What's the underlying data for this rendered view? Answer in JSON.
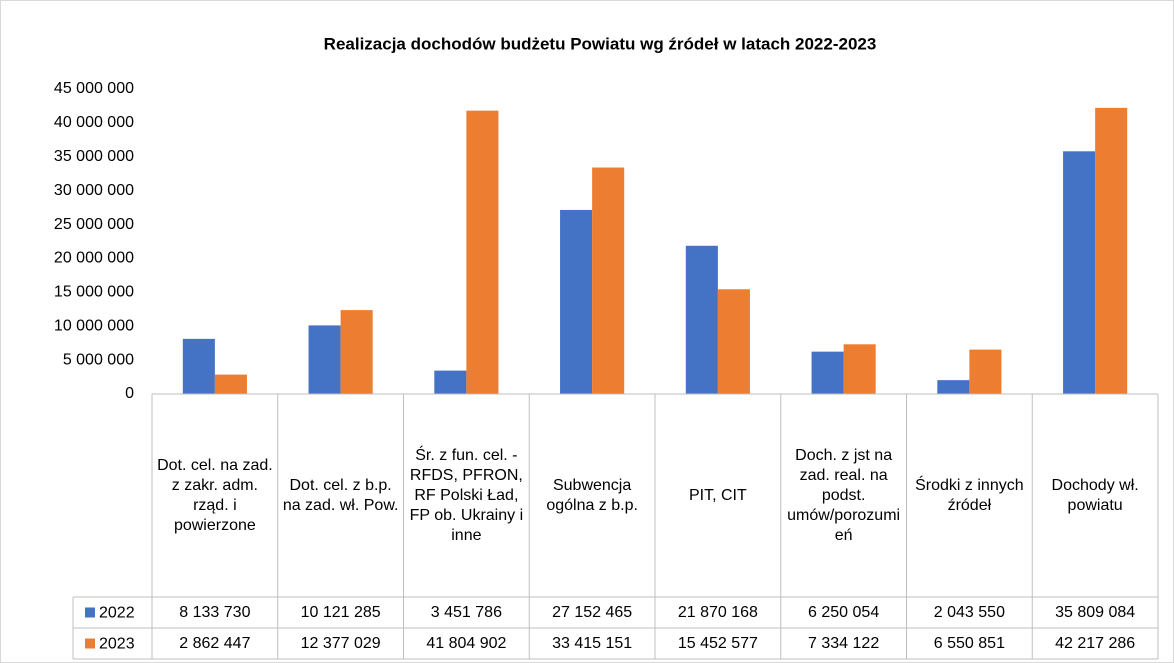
{
  "chart_data": {
    "type": "bar",
    "title": "Realizacja dochodów budżetu Powiatu wg źródeł w latach 2022-2023",
    "categories": [
      "Dot. cel. na zad. z zakr. adm. rząd. i powierzone",
      "Dot. cel. z b.p. na zad. wł. Pow.",
      "Śr. z fun. cel. - RFDS, PFRON, RF Polski Ład, FP ob. Ukrainy i inne",
      "Subwencja ogólna z b.p.",
      "PIT, CIT",
      "Doch. z jst na zad. real. na podst. umów/porozumień",
      "Środki z innych źródeł",
      "Dochody wł. powiatu"
    ],
    "series": [
      {
        "name": "2022",
        "color": "#4472c4",
        "values": [
          8133730,
          10121285,
          3451786,
          27152465,
          21870168,
          6250054,
          2043550,
          35809084
        ],
        "value_labels": [
          "8 133 730",
          "10 121 285",
          "3 451 786",
          "27 152 465",
          "21 870 168",
          "6 250 054",
          "2 043 550",
          "35 809 084"
        ]
      },
      {
        "name": "2023",
        "color": "#ed7d31",
        "values": [
          2862447,
          12377029,
          41804902,
          33415151,
          15452577,
          7334122,
          6550851,
          42217286
        ],
        "value_labels": [
          "2 862 447",
          "12 377 029",
          "41 804 902",
          "33 415 151",
          "15 452 577",
          "7 334 122",
          "6 550 851",
          "42 217 286"
        ]
      }
    ],
    "ylim": [
      0,
      45000000
    ],
    "yticks": [
      0,
      {
        "value": 5000000,
        "label": "5 000 000"
      },
      {
        "value": 10000000,
        "label": "10 000 000"
      },
      {
        "value": 15000000,
        "label": "15 000 000"
      },
      {
        "value": 20000000,
        "label": "20 000 000"
      },
      {
        "value": 25000000,
        "label": "25 000 000"
      },
      {
        "value": 30000000,
        "label": "30 000 000"
      },
      {
        "value": 35000000,
        "label": "35 000 000"
      },
      {
        "value": 40000000,
        "label": "40 000 000"
      },
      {
        "value": 45000000,
        "label": "45 000 000"
      }
    ],
    "grid": false
  }
}
